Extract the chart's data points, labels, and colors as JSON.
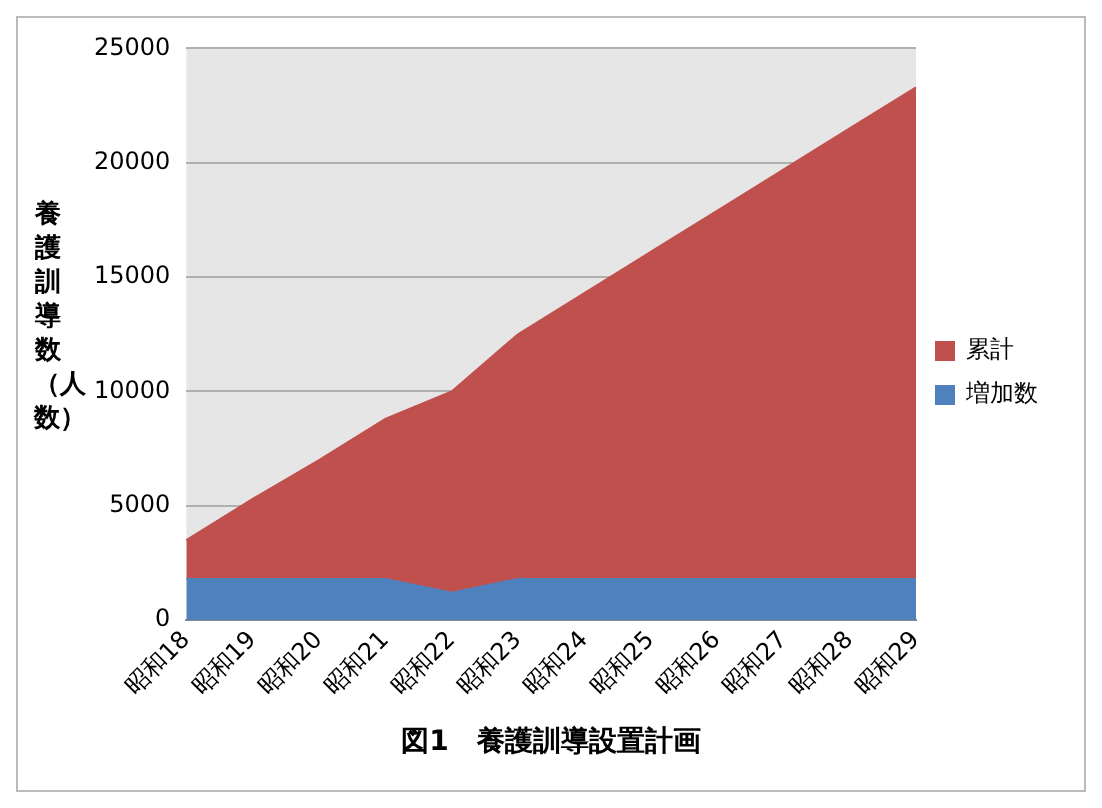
{
  "chart_data": {
    "type": "area",
    "title": "図1　養護訓導設置計画",
    "ylabel": "養護訓導数（人数）",
    "categories": [
      "昭和18",
      "昭和19",
      "昭和20",
      "昭和21",
      "昭和22",
      "昭和23",
      "昭和24",
      "昭和25",
      "昭和26",
      "昭和27",
      "昭和28",
      "昭和29"
    ],
    "series": [
      {
        "name": "増加数",
        "color": "#4f81bd",
        "values": [
          1800,
          1800,
          1800,
          1800,
          1200,
          1800,
          1800,
          1800,
          1800,
          1800,
          1800,
          1800
        ]
      },
      {
        "name": "累計",
        "color": "#c0504d",
        "values": [
          1700,
          3500,
          5200,
          7000,
          8800,
          10700,
          12500,
          14300,
          16100,
          17900,
          19700,
          21500
        ]
      }
    ],
    "stacked": true,
    "ylim": [
      0,
      25000
    ],
    "yticks": [
      0,
      5000,
      10000,
      15000,
      20000,
      25000
    ],
    "grid": "y",
    "legend": "right"
  }
}
